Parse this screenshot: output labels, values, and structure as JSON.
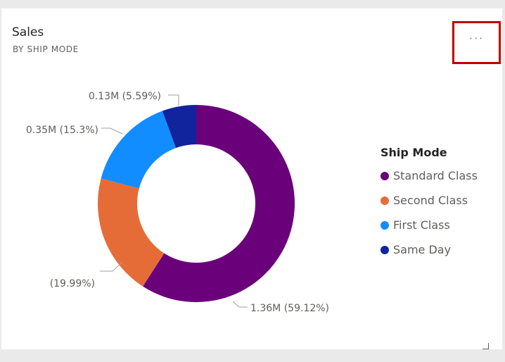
{
  "card": {
    "title": "Sales",
    "subtitle": "BY SHIP MODE",
    "more_options_label": "···"
  },
  "legend": {
    "title": "Ship Mode",
    "items": [
      {
        "label": "Standard Class",
        "color": "#6b007b"
      },
      {
        "label": "Second Class",
        "color": "#e66c37"
      },
      {
        "label": "First Class",
        "color": "#118dff"
      },
      {
        "label": "Same Day",
        "color": "#12239e"
      }
    ]
  },
  "chart_data": {
    "type": "pie",
    "title": "Sales",
    "subtitle": "BY SHIP MODE",
    "legend_title": "Ship Mode",
    "legend_position": "right",
    "donut": true,
    "slices": [
      {
        "name": "Standard Class",
        "value": 1.36,
        "percent": 59.12,
        "label": "1.36M (59.12%)",
        "color": "#6b007b"
      },
      {
        "name": "Second Class",
        "value": 0.46,
        "percent": 19.99,
        "label": "(19.99%)",
        "color": "#e66c37"
      },
      {
        "name": "First Class",
        "value": 0.35,
        "percent": 15.3,
        "label": "0.35M (15.3%)",
        "color": "#118dff"
      },
      {
        "name": "Same Day",
        "value": 0.13,
        "percent": 5.59,
        "label": "0.13M (5.59%)",
        "color": "#12239e"
      }
    ]
  }
}
